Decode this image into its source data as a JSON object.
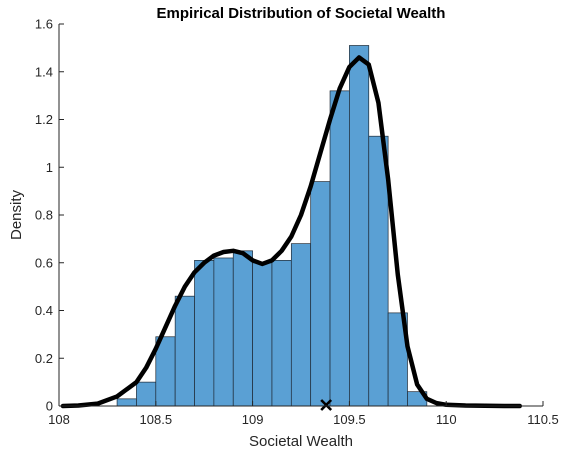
{
  "chart_data": {
    "type": "bar",
    "title": "Empirical Distribution of Societal Wealth",
    "xlabel": "Societal Wealth",
    "ylabel": "Density",
    "xlim": [
      108,
      110.5
    ],
    "ylim": [
      0,
      1.6
    ],
    "x_ticks": [
      108,
      108.5,
      109,
      109.5,
      110,
      110.5
    ],
    "x_tick_labels": [
      "108",
      "108.5",
      "109",
      "109.5",
      "110",
      "110.5"
    ],
    "y_ticks": [
      0,
      0.2,
      0.4,
      0.6,
      0.8,
      1,
      1.2,
      1.4,
      1.6
    ],
    "y_tick_labels": [
      "0",
      "0.2",
      "0.4",
      "0.6",
      "0.8",
      "1",
      "1.2",
      "1.4",
      "1.6"
    ],
    "grid": false,
    "histogram": {
      "bin_edges": [
        108.3,
        108.4,
        108.5,
        108.6,
        108.7,
        108.8,
        108.9,
        109.0,
        109.1,
        109.2,
        109.3,
        109.4,
        109.5,
        109.6,
        109.7,
        109.8,
        109.9
      ],
      "density": [
        0.03,
        0.1,
        0.29,
        0.46,
        0.61,
        0.62,
        0.65,
        0.6,
        0.61,
        0.68,
        0.94,
        1.32,
        1.51,
        1.13,
        0.39,
        0.06
      ],
      "color": "#5aa0d4",
      "edge_color": "#1f2a36"
    },
    "density_curve": {
      "color": "#000000",
      "points": [
        [
          108.02,
          0.0
        ],
        [
          108.1,
          0.002
        ],
        [
          108.2,
          0.01
        ],
        [
          108.3,
          0.04
        ],
        [
          108.35,
          0.07
        ],
        [
          108.4,
          0.1
        ],
        [
          108.45,
          0.16
        ],
        [
          108.5,
          0.24
        ],
        [
          108.55,
          0.33
        ],
        [
          108.6,
          0.42
        ],
        [
          108.65,
          0.5
        ],
        [
          108.7,
          0.56
        ],
        [
          108.75,
          0.6
        ],
        [
          108.8,
          0.63
        ],
        [
          108.85,
          0.645
        ],
        [
          108.9,
          0.65
        ],
        [
          108.95,
          0.64
        ],
        [
          109.0,
          0.61
        ],
        [
          109.05,
          0.595
        ],
        [
          109.1,
          0.61
        ],
        [
          109.15,
          0.65
        ],
        [
          109.2,
          0.71
        ],
        [
          109.25,
          0.8
        ],
        [
          109.3,
          0.92
        ],
        [
          109.35,
          1.06
        ],
        [
          109.4,
          1.2
        ],
        [
          109.45,
          1.33
        ],
        [
          109.5,
          1.42
        ],
        [
          109.55,
          1.46
        ],
        [
          109.6,
          1.43
        ],
        [
          109.65,
          1.27
        ],
        [
          109.7,
          0.95
        ],
        [
          109.75,
          0.55
        ],
        [
          109.8,
          0.25
        ],
        [
          109.85,
          0.09
        ],
        [
          109.9,
          0.03
        ],
        [
          109.95,
          0.012
        ],
        [
          110.0,
          0.005
        ],
        [
          110.1,
          0.002
        ],
        [
          110.2,
          0.001
        ],
        [
          110.3,
          0.0
        ],
        [
          110.38,
          0.0
        ]
      ]
    },
    "marker": {
      "x": 109.38,
      "y": 0.0,
      "symbol": "x",
      "color": "#000000"
    }
  }
}
